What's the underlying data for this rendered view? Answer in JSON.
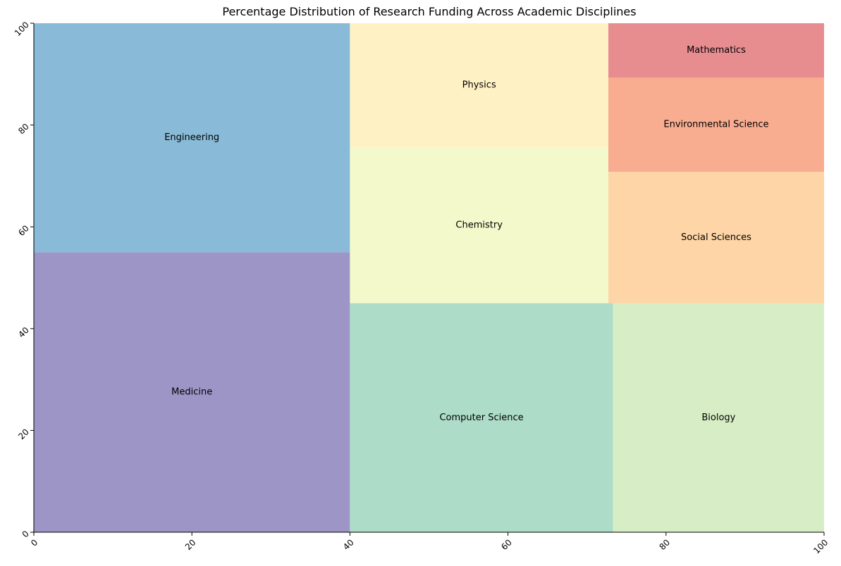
{
  "chart_data": {
    "type": "treemap",
    "title": "Percentage Distribution of Research Funding Across Academic Disciplines",
    "xlim": [
      0,
      100
    ],
    "ylim": [
      0,
      100
    ],
    "xticks": [
      0,
      20,
      40,
      60,
      80,
      100
    ],
    "yticks": [
      0,
      20,
      40,
      60,
      80,
      100
    ],
    "grid": false,
    "rectangles": [
      {
        "label": "Medicine",
        "x": 0,
        "y": 0,
        "dx": 40.0,
        "dy": 55.0,
        "color": "#9e95c7"
      },
      {
        "label": "Engineering",
        "x": 0,
        "y": 55.0,
        "dx": 40.0,
        "dy": 45.0,
        "color": "#89bad7"
      },
      {
        "label": "Computer Science",
        "x": 40.0,
        "y": 0,
        "dx": 33.3,
        "dy": 45.0,
        "color": "#addcc8"
      },
      {
        "label": "Chemistry",
        "x": 40.0,
        "y": 45.0,
        "dx": 32.7,
        "dy": 30.6,
        "color": "#f3f9cb"
      },
      {
        "label": "Physics",
        "x": 40.0,
        "y": 75.6,
        "dx": 32.7,
        "dy": 24.4,
        "color": "#fef2c4"
      },
      {
        "label": "Biology",
        "x": 73.3,
        "y": 0,
        "dx": 26.7,
        "dy": 45.0,
        "color": "#d7edc6"
      },
      {
        "label": "Social Sciences",
        "x": 72.7,
        "y": 45.0,
        "dx": 27.3,
        "dy": 25.8,
        "color": "#fdd5a6"
      },
      {
        "label": "Environmental Science",
        "x": 72.7,
        "y": 70.8,
        "dx": 27.3,
        "dy": 18.5,
        "color": "#f8ad90"
      },
      {
        "label": "Mathematics",
        "x": 72.7,
        "y": 89.3,
        "dx": 27.3,
        "dy": 10.7,
        "color": "#e78d90"
      }
    ]
  }
}
